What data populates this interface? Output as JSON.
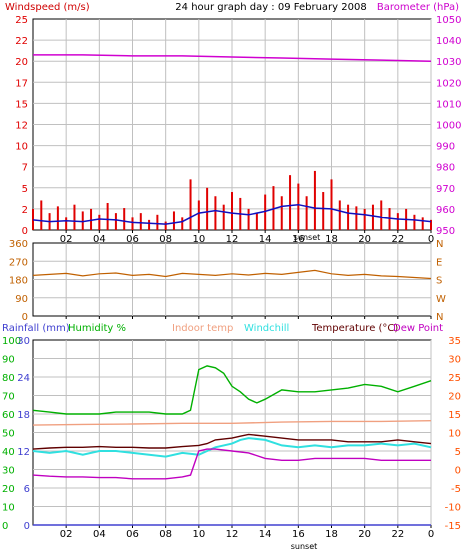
{
  "colors": {
    "background": "#ffffff",
    "axis": "#000000",
    "grid": "#c0c0c0",
    "windspeed": "#e00000",
    "windspeed_avg": "#1010c0",
    "barometer": "#d000d0",
    "wind_direction": "#c06000",
    "rainfall": "#4040d0",
    "humidity": "#00b000",
    "indoor_temp": "#f0a080",
    "windchill": "#30e0e0",
    "temperature": "#600000",
    "dew_point": "#c000c0",
    "temperature_axis": "#ff5000"
  },
  "chart_data": [
    {
      "type": "line",
      "title": "24 hour graph day : 09 February 2008",
      "left_axis_label": "Windspeed (m/s)",
      "right_axis_label": "Barometer (hPa)",
      "left_ticks": [
        "0",
        "2",
        "5",
        "7",
        "10",
        "12",
        "15",
        "17",
        "20",
        "22",
        "25"
      ],
      "left_range": [
        0,
        25
      ],
      "right_ticks": [
        "950",
        "960",
        "970",
        "980",
        "990",
        "1000",
        "1010",
        "1020",
        "1030",
        "1040",
        "1050"
      ],
      "right_range": [
        950,
        1050
      ],
      "x_ticks": [
        "02",
        "04",
        "06",
        "08",
        "10",
        "12",
        "14",
        "16",
        "18",
        "20",
        "22",
        "0"
      ],
      "x_range_hours": [
        0,
        24
      ],
      "x_marker": "sunset",
      "grid": true,
      "series": [
        {
          "key": "barometer",
          "axis": "right",
          "x": [
            0,
            3,
            6,
            9,
            12,
            15,
            18,
            21,
            24
          ],
          "values": [
            1033,
            1033,
            1032.5,
            1032.5,
            1032,
            1031.5,
            1031,
            1030.5,
            1030
          ]
        },
        {
          "key": "windspeed_avg",
          "axis": "left",
          "x": [
            0,
            1,
            2,
            3,
            4,
            5,
            6,
            7,
            8,
            9,
            10,
            11,
            12,
            13,
            14,
            15,
            16,
            17,
            18,
            19,
            20,
            21,
            22,
            23,
            24
          ],
          "values": [
            1.2,
            1.0,
            1.1,
            1.0,
            1.3,
            1.2,
            0.9,
            0.8,
            0.7,
            1.0,
            2.0,
            2.3,
            2.0,
            1.8,
            2.2,
            2.8,
            3.0,
            2.6,
            2.5,
            2.0,
            1.8,
            1.5,
            1.3,
            1.2,
            1.0
          ]
        },
        {
          "key": "windspeed",
          "axis": "left",
          "x": [
            0,
            0.5,
            1,
            1.5,
            2,
            2.5,
            3,
            3.5,
            4,
            4.5,
            5,
            5.5,
            6,
            6.5,
            7,
            7.5,
            8,
            8.5,
            9,
            9.5,
            10,
            10.5,
            11,
            11.5,
            12,
            12.5,
            13,
            13.5,
            14,
            14.5,
            15,
            15.5,
            16,
            16.5,
            17,
            17.5,
            18,
            18.5,
            19,
            19.5,
            20,
            20.5,
            21,
            21.5,
            22,
            22.5,
            23,
            23.5,
            24
          ],
          "values": [
            2.5,
            3.5,
            2.0,
            2.8,
            1.5,
            3.0,
            2.2,
            2.5,
            1.8,
            3.2,
            2.0,
            2.6,
            1.5,
            2.0,
            1.2,
            1.8,
            1.0,
            2.2,
            1.5,
            6.0,
            3.5,
            5.0,
            4.0,
            3.0,
            4.5,
            3.8,
            2.5,
            2.0,
            4.2,
            5.2,
            4.0,
            6.5,
            5.5,
            4.0,
            7.0,
            4.5,
            6.0,
            3.5,
            3.0,
            2.8,
            2.5,
            3.0,
            3.5,
            2.6,
            2.0,
            2.5,
            1.8,
            1.5,
            1.2
          ]
        }
      ]
    },
    {
      "type": "line",
      "left_ticks": [
        "0",
        "90",
        "180",
        "270",
        "360"
      ],
      "left_range": [
        0,
        360
      ],
      "right_ticks": [
        "N",
        "W",
        "S",
        "E",
        "N"
      ],
      "x_range_hours": [
        0,
        24
      ],
      "grid": true,
      "series": [
        {
          "key": "wind_direction",
          "axis": "left",
          "x": [
            0,
            1,
            2,
            3,
            4,
            5,
            6,
            7,
            8,
            9,
            10,
            11,
            12,
            13,
            14,
            15,
            16,
            17,
            18,
            19,
            20,
            21,
            22,
            23,
            24
          ],
          "values": [
            200,
            205,
            210,
            198,
            208,
            212,
            200,
            205,
            195,
            210,
            205,
            200,
            208,
            202,
            210,
            205,
            215,
            225,
            208,
            200,
            205,
            198,
            195,
            190,
            185
          ]
        }
      ]
    },
    {
      "type": "line",
      "legend": [
        "Rainfall (mm)",
        "Humidity %",
        "Indoor temp",
        "Windchill",
        "Temperature (°C)",
        "Dew Point"
      ],
      "rainfall_ticks": [
        "0",
        "6",
        "12",
        "18",
        "24",
        "30"
      ],
      "rainfall_range": [
        0,
        30
      ],
      "humidity_ticks": [
        "0",
        "10",
        "20",
        "30",
        "40",
        "50",
        "60",
        "70",
        "80",
        "90",
        "100"
      ],
      "humidity_range": [
        0,
        100
      ],
      "temperature_ticks": [
        "-15",
        "-10",
        "-5",
        "0",
        "5",
        "10",
        "15",
        "20",
        "25",
        "30",
        "35"
      ],
      "temperature_range": [
        -15,
        35
      ],
      "x_ticks": [
        "02",
        "04",
        "06",
        "08",
        "10",
        "12",
        "14",
        "16",
        "18",
        "20",
        "22",
        "0"
      ],
      "x_range_hours": [
        0,
        24
      ],
      "x_marker": "sunset",
      "grid": true,
      "series": [
        {
          "key": "rainfall",
          "axis": "rainfall",
          "x": [
            0,
            24
          ],
          "values": [
            0,
            0
          ]
        },
        {
          "key": "humidity",
          "axis": "humidity",
          "x": [
            0,
            1,
            2,
            3,
            4,
            5,
            6,
            7,
            8,
            9,
            9.5,
            10,
            10.5,
            11,
            11.5,
            12,
            12.5,
            13,
            13.5,
            14,
            15,
            16,
            17,
            18,
            19,
            20,
            21,
            22,
            23,
            24
          ],
          "values": [
            62,
            61,
            60,
            60,
            60,
            61,
            61,
            61,
            60,
            60,
            62,
            84,
            86,
            85,
            82,
            75,
            72,
            68,
            66,
            68,
            73,
            72,
            72,
            73,
            74,
            76,
            75,
            72,
            75,
            78
          ]
        },
        {
          "key": "indoor_temp",
          "axis": "temperature",
          "x": [
            0,
            3,
            6,
            9,
            12,
            15,
            18,
            21,
            24
          ],
          "values": [
            12.0,
            12.2,
            12.3,
            12.5,
            12.5,
            12.8,
            13.0,
            13.0,
            13.2
          ]
        },
        {
          "key": "windchill",
          "axis": "temperature",
          "x": [
            0,
            1,
            2,
            3,
            4,
            5,
            6,
            7,
            8,
            9,
            10,
            10.5,
            11,
            12,
            12.5,
            13,
            14,
            15,
            16,
            17,
            18,
            19,
            20,
            21,
            22,
            23,
            24
          ],
          "values": [
            5.0,
            4.5,
            5.0,
            4.0,
            5.0,
            5.0,
            4.5,
            4.0,
            3.5,
            4.5,
            4.0,
            5.0,
            6.0,
            7.0,
            8.0,
            8.5,
            8.0,
            6.5,
            6.0,
            6.5,
            6.0,
            6.5,
            6.5,
            7.0,
            6.5,
            7.0,
            6.0
          ]
        },
        {
          "key": "temperature",
          "axis": "temperature",
          "x": [
            0,
            1,
            2,
            3,
            4,
            5,
            6,
            7,
            8,
            9,
            10,
            10.5,
            11,
            12,
            12.5,
            13,
            14,
            15,
            16,
            17,
            18,
            19,
            20,
            21,
            22,
            23,
            24
          ],
          "values": [
            5.5,
            5.8,
            6.0,
            6.0,
            6.2,
            6.0,
            6.0,
            5.8,
            5.8,
            6.2,
            6.5,
            7.0,
            8.0,
            8.5,
            9.0,
            9.5,
            9.0,
            8.5,
            8.0,
            8.0,
            8.0,
            7.5,
            7.5,
            7.5,
            8.0,
            7.5,
            7.0
          ]
        },
        {
          "key": "dew_point",
          "axis": "temperature",
          "x": [
            0,
            1,
            2,
            3,
            4,
            5,
            6,
            7,
            8,
            9,
            9.5,
            10,
            10.5,
            11,
            12,
            13,
            14,
            15,
            16,
            17,
            18,
            19,
            20,
            21,
            22,
            23,
            24
          ],
          "values": [
            -1.5,
            -1.8,
            -2.0,
            -2.0,
            -2.2,
            -2.2,
            -2.5,
            -2.5,
            -2.5,
            -2.0,
            -1.5,
            5.0,
            5.5,
            5.5,
            5.0,
            4.5,
            3.0,
            2.5,
            2.5,
            3.0,
            3.0,
            3.0,
            3.0,
            2.5,
            2.5,
            2.5,
            2.5
          ]
        }
      ]
    }
  ]
}
